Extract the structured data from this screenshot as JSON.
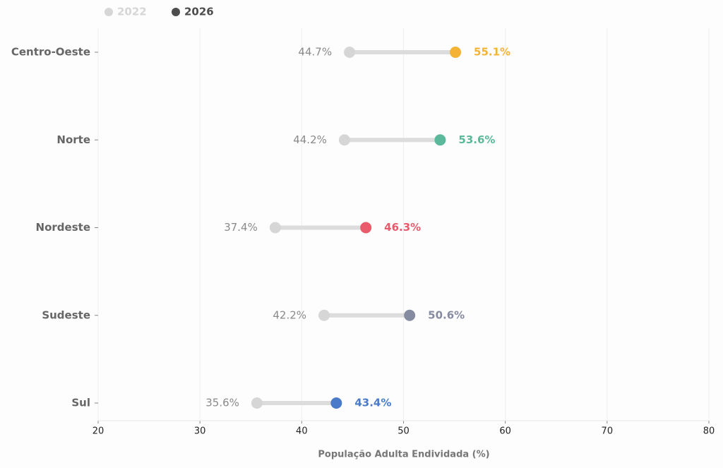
{
  "chart_data": {
    "type": "dumbbell",
    "categories": [
      "Centro-Oeste",
      "Norte",
      "Nordeste",
      "Sudeste",
      "Sul"
    ],
    "series": [
      {
        "name": "2022",
        "color": "#d6d6d6",
        "values": [
          44.7,
          44.2,
          37.4,
          42.2,
          35.6
        ],
        "value_labels": [
          "44.7%",
          "44.2%",
          "37.4%",
          "42.2%",
          "35.6%"
        ]
      },
      {
        "name": "2026",
        "color": "#4d4d4d",
        "point_colors": [
          "#f5b335",
          "#5bb89a",
          "#e95a6a",
          "#858ba0",
          "#4a7bc9"
        ],
        "values": [
          55.1,
          53.6,
          46.3,
          50.6,
          43.4
        ],
        "value_labels": [
          "55.1%",
          "53.6%",
          "46.3%",
          "50.6%",
          "43.4%"
        ]
      }
    ],
    "xlabel": "População Adulta Endividada (%)",
    "xlim": [
      20,
      80
    ],
    "xticks": [
      20,
      30,
      40,
      50,
      60,
      70,
      80
    ],
    "grid": true
  }
}
